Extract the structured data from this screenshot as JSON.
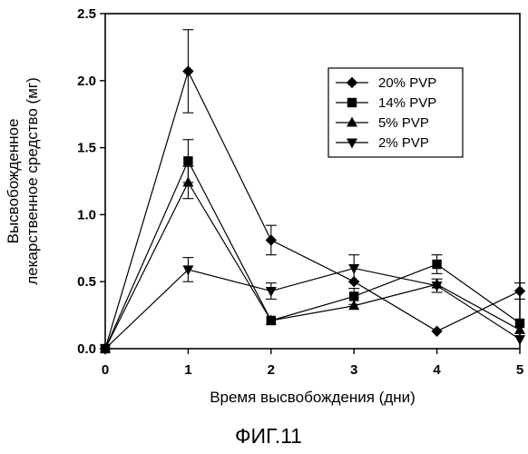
{
  "figure_label": "ФИГ.11",
  "chart_data": {
    "type": "line",
    "xlabel": "Время высвобождения (дни)",
    "ylabel_lines": [
      "Высвобожденное",
      "лекарственное средство (мг)"
    ],
    "xlim": [
      0,
      5
    ],
    "ylim": [
      0,
      2.5
    ],
    "x_ticks": [
      0,
      1,
      2,
      3,
      4,
      5
    ],
    "x_tick_labels": [
      "0",
      "1",
      "2",
      "3",
      "4",
      "5"
    ],
    "y_ticks": [
      0,
      0.5,
      1.0,
      1.5,
      2.0,
      2.5
    ],
    "y_tick_labels": [
      "0.0",
      "0.5",
      "1.0",
      "1.5",
      "2.0",
      "2.5"
    ],
    "grid": false,
    "legend_position": "top-right",
    "x": [
      0,
      1,
      2,
      3,
      4,
      5
    ],
    "series": [
      {
        "name": "20% PVP",
        "marker": "diamond",
        "values": [
          0,
          2.07,
          0.81,
          0.5,
          0.13,
          0.43
        ],
        "errors": [
          0,
          0.31,
          0.11,
          0,
          0,
          0.06
        ]
      },
      {
        "name": "14% PVP",
        "marker": "square",
        "values": [
          0,
          1.4,
          0.21,
          0.39,
          0.63,
          0.19
        ],
        "errors": [
          0,
          0.16,
          0,
          0.06,
          0.07,
          0
        ]
      },
      {
        "name": "5% PVP",
        "marker": "triangle-up",
        "values": [
          0,
          1.24,
          0.21,
          0.32,
          0.48,
          0.14
        ],
        "errors": [
          0,
          0.12,
          0,
          0,
          0,
          0
        ]
      },
      {
        "name": "2% PVP",
        "marker": "triangle-down",
        "values": [
          0,
          0.59,
          0.43,
          0.6,
          0.47,
          0.07
        ],
        "errors": [
          0,
          0.09,
          0.06,
          0.1,
          0.05,
          0
        ]
      }
    ]
  }
}
